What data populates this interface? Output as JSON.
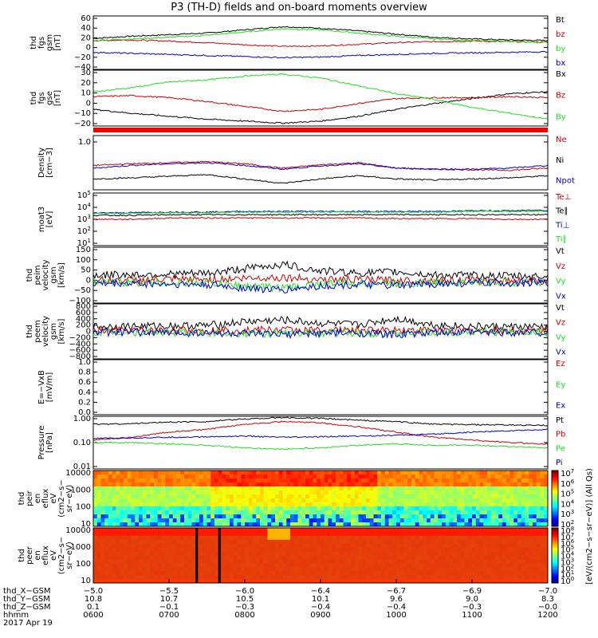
{
  "title": "P3 (TH-D) fields and on-board moments overview",
  "colors": {
    "black": "#000000",
    "red": "#cc0000",
    "green": "#22dd22",
    "blue": "#0000cc",
    "strip": "#ee0000"
  },
  "chart_data": [
    {
      "type": "line",
      "panel": "fgs_gsm",
      "ylabel": [
        "thd",
        "fgs",
        "gsm",
        "[nT]"
      ],
      "yticks": [
        "60",
        "40",
        "20",
        "0",
        "−20",
        "−40"
      ],
      "ylim": [
        -40,
        60
      ],
      "series": [
        {
          "name": "Bt",
          "color": "black",
          "values": [
            18,
            22,
            25,
            28,
            34,
            40,
            37,
            32,
            26,
            20,
            17,
            15,
            14
          ]
        },
        {
          "name": "bz",
          "color": "red",
          "values": [
            14,
            15,
            13,
            10,
            6,
            3,
            4,
            7,
            10,
            12,
            13,
            12,
            11
          ]
        },
        {
          "name": "by",
          "color": "green",
          "values": [
            14,
            17,
            20,
            24,
            30,
            36,
            34,
            28,
            22,
            17,
            14,
            12,
            10
          ]
        },
        {
          "name": "bx",
          "color": "blue",
          "values": [
            -8,
            -10,
            -12,
            -14,
            -16,
            -18,
            -17,
            -14,
            -12,
            -10,
            -9,
            -8,
            -7
          ]
        }
      ]
    },
    {
      "type": "line",
      "panel": "fgs_gse",
      "ylabel": [
        "thd",
        "fgs",
        "gse",
        "[nT]"
      ],
      "yticks": [
        "30",
        "20",
        "10",
        "0",
        "−10",
        "−20"
      ],
      "ylim": [
        -25,
        32
      ],
      "series": [
        {
          "name": "Bx",
          "color": "black",
          "values": [
            -8,
            -12,
            -15,
            -18,
            -20,
            -22,
            -20,
            -15,
            -8,
            -2,
            3,
            8,
            10
          ]
        },
        {
          "name": "Bz",
          "color": "red",
          "values": [
            5,
            6,
            4,
            0,
            -5,
            -10,
            -8,
            -2,
            3,
            4,
            4,
            5,
            4
          ]
        },
        {
          "name": "By",
          "color": "green",
          "values": [
            10,
            14,
            20,
            22,
            26,
            28,
            24,
            16,
            8,
            2,
            -6,
            -12,
            -18
          ]
        }
      ]
    },
    {
      "type": "line",
      "panel": "density",
      "ylabel": [
        "Density",
        "[cm−3]"
      ],
      "yticks": [
        "1.0"
      ],
      "series": [
        {
          "name": "Ne",
          "color": "red",
          "values": [
            0.55,
            0.58,
            0.6,
            0.62,
            0.58,
            0.5,
            0.56,
            0.6,
            0.5,
            0.48,
            0.47,
            0.46,
            0.5
          ]
        },
        {
          "name": "Ni",
          "color": "black",
          "values": [
            0.3,
            0.32,
            0.35,
            0.38,
            0.3,
            0.22,
            0.3,
            0.36,
            0.3,
            0.28,
            0.3,
            0.32,
            0.36
          ]
        },
        {
          "name": "Npot",
          "color": "blue",
          "values": [
            0.5,
            0.55,
            0.58,
            0.6,
            0.55,
            0.48,
            0.54,
            0.58,
            0.5,
            0.48,
            0.48,
            0.5,
            0.55
          ]
        }
      ]
    },
    {
      "type": "line",
      "panel": "temperature",
      "ylabel": [
        "moat3",
        "[eV]"
      ],
      "yticks": [
        "10^5",
        "10^4",
        "10^3",
        "10^2",
        "10^1"
      ],
      "ylim": [
        1,
        5
      ],
      "yscale": "log",
      "series": [
        {
          "name": "Te⊥",
          "color": "red",
          "values": [
            3.0,
            3.0,
            3.1,
            3.1,
            3.1,
            3.1,
            3.1,
            3.1,
            3.05,
            3.05,
            3.05,
            3.0,
            3.0
          ]
        },
        {
          "name": "Te∥",
          "color": "black",
          "values": [
            3.3,
            3.3,
            3.35,
            3.35,
            3.35,
            3.35,
            3.35,
            3.35,
            3.35,
            3.35,
            3.35,
            3.35,
            3.35
          ]
        },
        {
          "name": "Ti⊥",
          "color": "blue",
          "values": [
            3.5,
            3.5,
            3.55,
            3.55,
            3.6,
            3.6,
            3.6,
            3.6,
            3.6,
            3.6,
            3.65,
            3.65,
            3.7
          ]
        },
        {
          "name": "Ti∥",
          "color": "green",
          "values": [
            3.45,
            3.45,
            3.5,
            3.5,
            3.55,
            3.55,
            3.55,
            3.55,
            3.55,
            3.55,
            3.6,
            3.6,
            3.6
          ]
        }
      ]
    },
    {
      "type": "line",
      "panel": "peim_velocity",
      "ylabel": [
        "thd",
        "peim",
        "velocity",
        "gsm",
        "[km/s]"
      ],
      "yticks": [
        "150",
        "100",
        "50",
        "0",
        "−50",
        "−100"
      ],
      "ylim": [
        -100,
        160
      ],
      "series": [
        {
          "name": "Vt",
          "color": "black",
          "values": [
            30,
            32,
            35,
            38,
            60,
            80,
            50,
            40,
            45,
            30,
            28,
            26,
            24
          ]
        },
        {
          "name": "Vz",
          "color": "red",
          "values": [
            5,
            5,
            8,
            10,
            15,
            20,
            10,
            8,
            6,
            5,
            5,
            4,
            4
          ]
        },
        {
          "name": "Vy",
          "color": "green",
          "values": [
            -5,
            -4,
            -5,
            -6,
            -20,
            -30,
            -10,
            -8,
            -10,
            -5,
            -4,
            -4,
            -3
          ]
        },
        {
          "name": "Vx",
          "color": "blue",
          "values": [
            -10,
            -8,
            -12,
            -15,
            -30,
            -40,
            -20,
            -15,
            -20,
            -10,
            -8,
            -6,
            -5
          ]
        }
      ]
    },
    {
      "type": "line",
      "panel": "peem_velocity",
      "ylabel": [
        "thd",
        "peem",
        "velocity",
        "gsm",
        "[km/s]"
      ],
      "yticks": [
        "800",
        "600",
        "400",
        "200",
        "0",
        "−200",
        "−400",
        "−600",
        "−800"
      ],
      "ylim": [
        -850,
        850
      ],
      "series": [
        {
          "name": "Vt",
          "color": "black",
          "values": [
            150,
            160,
            170,
            180,
            300,
            350,
            250,
            200,
            400,
            200,
            150,
            140,
            130
          ]
        },
        {
          "name": "Vz",
          "color": "red",
          "values": [
            20,
            20,
            25,
            30,
            40,
            50,
            30,
            30,
            50,
            30,
            20,
            20,
            20
          ]
        },
        {
          "name": "Vy",
          "color": "green",
          "values": [
            -20,
            -20,
            -30,
            -40,
            -60,
            -80,
            -40,
            -40,
            -80,
            -40,
            -20,
            -20,
            -20
          ]
        },
        {
          "name": "Vx",
          "color": "blue",
          "values": [
            -30,
            -30,
            -40,
            -50,
            -80,
            -100,
            -60,
            -50,
            -100,
            -50,
            -30,
            -30,
            -30
          ]
        }
      ]
    },
    {
      "type": "line",
      "panel": "efield",
      "ylabel": [
        "E=−VxB",
        "[mV/m]"
      ],
      "yticks": [
        "1.0",
        "0.8",
        "0.6",
        "0.4",
        "0.2",
        "0.0"
      ],
      "ylim": [
        0,
        1
      ],
      "series": [
        {
          "name": "Ez",
          "color": "red",
          "values": []
        },
        {
          "name": "Ey",
          "color": "green",
          "values": []
        },
        {
          "name": "Ex",
          "color": "blue",
          "values": []
        }
      ]
    },
    {
      "type": "line",
      "panel": "pressure",
      "ylabel": [
        "Pressure",
        "[nPa]"
      ],
      "yticks": [
        "1.00",
        "0.10",
        "0.01"
      ],
      "ylim": [
        -2,
        0
      ],
      "yscale": "log",
      "series": [
        {
          "name": "Pt",
          "color": "black",
          "values": [
            -0.3,
            -0.28,
            -0.22,
            -0.2,
            -0.1,
            -0.05,
            -0.08,
            -0.15,
            -0.2,
            -0.3,
            -0.32,
            -0.33,
            -0.35
          ]
        },
        {
          "name": "Pb",
          "color": "red",
          "values": [
            -0.9,
            -0.8,
            -0.6,
            -0.5,
            -0.3,
            -0.2,
            -0.25,
            -0.4,
            -0.6,
            -0.8,
            -0.9,
            -1.0,
            -1.05
          ]
        },
        {
          "name": "Pe",
          "color": "green",
          "values": [
            -1.0,
            -1.0,
            -1.05,
            -1.1,
            -1.2,
            -1.25,
            -1.2,
            -1.1,
            -1.05,
            -1.1,
            -1.1,
            -1.15,
            -1.2
          ]
        },
        {
          "name": "Pi",
          "color": "blue",
          "values": [
            -0.85,
            -0.82,
            -0.8,
            -0.78,
            -0.75,
            -0.8,
            -0.78,
            -0.75,
            -0.72,
            -0.68,
            -0.6,
            -0.55,
            -0.5
          ]
        }
      ]
    },
    {
      "type": "heatmap",
      "panel": "peir_en_eflux",
      "ylabel": [
        "thd",
        "peir",
        "en",
        "eflux",
        "eV",
        "(cm2−s−",
        "sr−eV)"
      ],
      "yticks": [
        "10000",
        "1000",
        "100",
        "10"
      ]
    },
    {
      "type": "heatmap",
      "panel": "peer_en_eflux",
      "ylabel": [
        "thd",
        "peer",
        "en",
        "eflux",
        "eV",
        "(cm2−s−",
        "sr−eV)"
      ],
      "yticks": [
        "10000",
        "1000",
        "100",
        "10"
      ]
    }
  ],
  "colorbars": [
    {
      "ticks": [
        "10^7",
        "10^6",
        "10^5",
        "10^4",
        "10^3",
        "10^2"
      ]
    },
    {
      "ticks": [
        "10^8",
        "10^7",
        "10^6",
        "10^5",
        "10^4",
        "10^3",
        "10^2",
        "10^1",
        "10^0"
      ]
    }
  ],
  "colorbar_label": "[eV/(cm2−s−sr−eV)] (All Qs)",
  "x_axis": {
    "row_labels": [
      "thd_X−GSM",
      "thd_Y−GSM",
      "thd_Z−GSM",
      "hhmm",
      "2017 Apr 19"
    ],
    "columns": [
      [
        "−5.0",
        "10.8",
        "0.1",
        "0600"
      ],
      [
        "−5.5",
        "10.7",
        "−0.1",
        "0700"
      ],
      [
        "−6.0",
        "10.5",
        "−0.3",
        "0800"
      ],
      [
        "−6.4",
        "10.1",
        "−0.4",
        "0900"
      ],
      [
        "−6.7",
        "9.6",
        "−0.4",
        "1000"
      ],
      [
        "−6.9",
        "9.0",
        "−0.3",
        "1100"
      ],
      [
        "−7.0",
        "8.3",
        "−0.0",
        "1200"
      ]
    ]
  }
}
